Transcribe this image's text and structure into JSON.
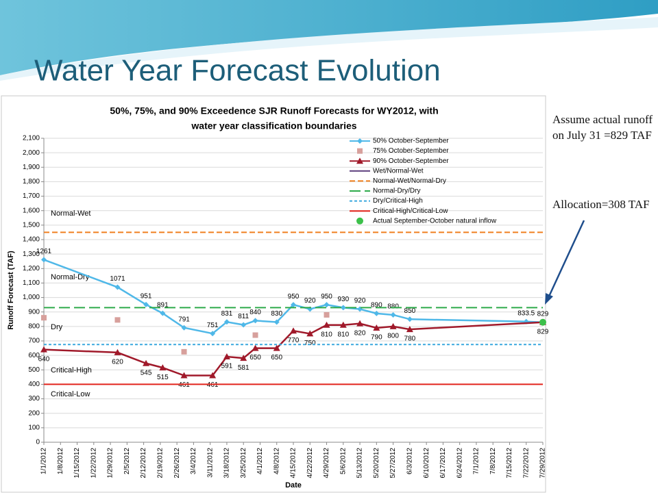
{
  "slide_title": "Water Year Forecast Evolution",
  "notes": [
    "Assume actual runoff on July 31 =829 TAF",
    "Allocation=308 TAF"
  ],
  "chart_data": {
    "type": "line",
    "title": [
      "50%, 75%, and 90% Exceedence SJR Runoff Forecasts for WY2012, with",
      "water year classification boundaries"
    ],
    "ylabel": "Runoff Forecast (TAF)",
    "xlabel": "Date",
    "xlim": [
      "1/1/2012",
      "7/29/2012"
    ],
    "xticks": [
      "1/1/2012",
      "1/8/2012",
      "1/15/2012",
      "1/22/2012",
      "1/29/2012",
      "2/5/2012",
      "2/12/2012",
      "2/19/2012",
      "2/26/2012",
      "3/4/2012",
      "3/11/2012",
      "3/18/2012",
      "3/25/2012",
      "4/1/2012",
      "4/8/2012",
      "4/15/2012",
      "4/22/2012",
      "4/29/2012",
      "5/6/2012",
      "5/13/2012",
      "5/20/2012",
      "5/27/2012",
      "6/3/2012",
      "6/10/2012",
      "6/17/2012",
      "6/24/2012",
      "7/1/2012",
      "7/8/2012",
      "7/15/2012",
      "7/22/2012",
      "7/29/2012"
    ],
    "ylim": [
      0,
      2100
    ],
    "yticks": [
      0,
      100,
      200,
      300,
      400,
      500,
      600,
      700,
      800,
      900,
      {
        "value": 1000,
        "label": "1,000"
      },
      {
        "value": 1100,
        "label": "1,100"
      },
      {
        "value": 1200,
        "label": "1,200"
      },
      {
        "value": 1300,
        "label": "1,300"
      },
      {
        "value": 1400,
        "label": "1,400"
      },
      {
        "value": 1500,
        "label": "1,500"
      },
      {
        "value": 1600,
        "label": "1,600"
      },
      {
        "value": 1700,
        "label": "1,700"
      },
      {
        "value": 1800,
        "label": "1,800"
      },
      {
        "value": 1900,
        "label": "1,900"
      },
      {
        "value": 2000,
        "label": "2,000"
      },
      {
        "value": 2100,
        "label": "2,100"
      }
    ],
    "grid": true,
    "regions": [
      "Normal-Wet",
      "Normal-Dry",
      "Dry",
      "Critical-High",
      "Critical-Low"
    ],
    "series": [
      {
        "name": "50% October-September",
        "color": "#4fb8e8",
        "line": true,
        "marker": "diamond",
        "labels": "above",
        "x": [
          "1/1/2012",
          "2/1/2012",
          "2/13/2012",
          "2/20/2012",
          "2/29/2012",
          "3/12/2012",
          "3/18/2012",
          "3/25/2012",
          "3/30/2012",
          "4/8/2012",
          "4/15/2012",
          "4/22/2012",
          "4/29/2012",
          "5/6/2012",
          "5/13/2012",
          "5/20/2012",
          "5/27/2012",
          "6/3/2012",
          "7/22/2012",
          "7/29/2012"
        ],
        "values": [
          1261,
          1071,
          951,
          891,
          791,
          751,
          831,
          811,
          840,
          830,
          950,
          920,
          950,
          930,
          920,
          890,
          880,
          850,
          833.5,
          829
        ]
      },
      {
        "name": "75% October-September",
        "color": "#d7a09c",
        "line": false,
        "marker": "square",
        "x": [
          "1/1/2012",
          "2/1/2012",
          "2/29/2012",
          "3/30/2012",
          "4/29/2012"
        ],
        "values": [
          860,
          845,
          625,
          740,
          880
        ]
      },
      {
        "name": "90% October-September",
        "color": "#a0192a",
        "line": true,
        "marker": "triangle",
        "labels": "below",
        "x": [
          "1/1/2012",
          "2/1/2012",
          "2/13/2012",
          "2/20/2012",
          "2/29/2012",
          "3/12/2012",
          "3/18/2012",
          "3/25/2012",
          "3/30/2012",
          "4/8/2012",
          "4/15/2012",
          "4/22/2012",
          "4/29/2012",
          "5/6/2012",
          "5/13/2012",
          "5/20/2012",
          "5/27/2012",
          "6/3/2012",
          "7/29/2012"
        ],
        "values": [
          640,
          620,
          545,
          515,
          461,
          461,
          591,
          581,
          650,
          650,
          770,
          750,
          810,
          810,
          820,
          790,
          800,
          780,
          829
        ]
      },
      {
        "name": "Wet/Normal-Wet",
        "color": "#5b3d7c",
        "kind": "hline",
        "dash": "solid",
        "values": []
      },
      {
        "name": "Normal-Wet/Normal-Dry",
        "color": "#f07f1e",
        "kind": "hline",
        "dash": "dashed",
        "values": [
          1450
        ]
      },
      {
        "name": "Normal-Dry/Dry",
        "color": "#2daa4a",
        "kind": "hline",
        "dash": "long",
        "values": [
          930
        ]
      },
      {
        "name": "Dry/Critical-High",
        "color": "#3aa8de",
        "kind": "hline",
        "dash": "short",
        "values": [
          675
        ]
      },
      {
        "name": "Critical-High/Critical-Low",
        "color": "#e2231a",
        "kind": "hline",
        "dash": "solid",
        "values": [
          400
        ]
      },
      {
        "name": "Actual September-October natural inflow",
        "color": "#3cc04a",
        "line": false,
        "marker": "circle",
        "x": [
          "7/29/2012"
        ],
        "values": [
          829
        ]
      }
    ]
  }
}
